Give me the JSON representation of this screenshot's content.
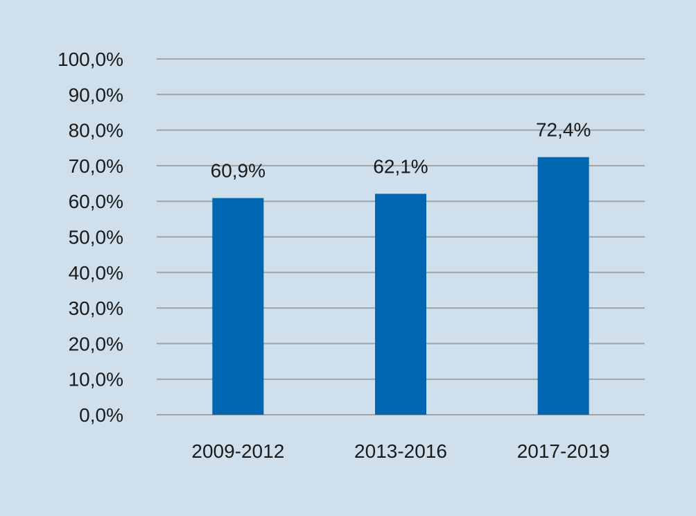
{
  "colors": {
    "background": "#cfe0ec",
    "bar": "#0066b0",
    "gridline": "#9ea3a8",
    "text": "#1a1a1a"
  },
  "chart_data": {
    "type": "bar",
    "title": "",
    "xlabel": "",
    "ylabel": "",
    "categories": [
      "2009-2012",
      "2013-2016",
      "2017-2019"
    ],
    "values": [
      60.9,
      62.1,
      72.4
    ],
    "data_labels": [
      "60,9%",
      "62,1%",
      "72,4%"
    ],
    "ylim": [
      0,
      100
    ],
    "yticks": [
      0,
      10,
      20,
      30,
      40,
      50,
      60,
      70,
      80,
      90,
      100
    ],
    "ytick_labels": [
      "0,0%",
      "10,0%",
      "20,0%",
      "30,0%",
      "40,0%",
      "50,0%",
      "60,0%",
      "70,0%",
      "80,0%",
      "90,0%",
      "100,0%"
    ],
    "grid": true,
    "legend": "none"
  }
}
